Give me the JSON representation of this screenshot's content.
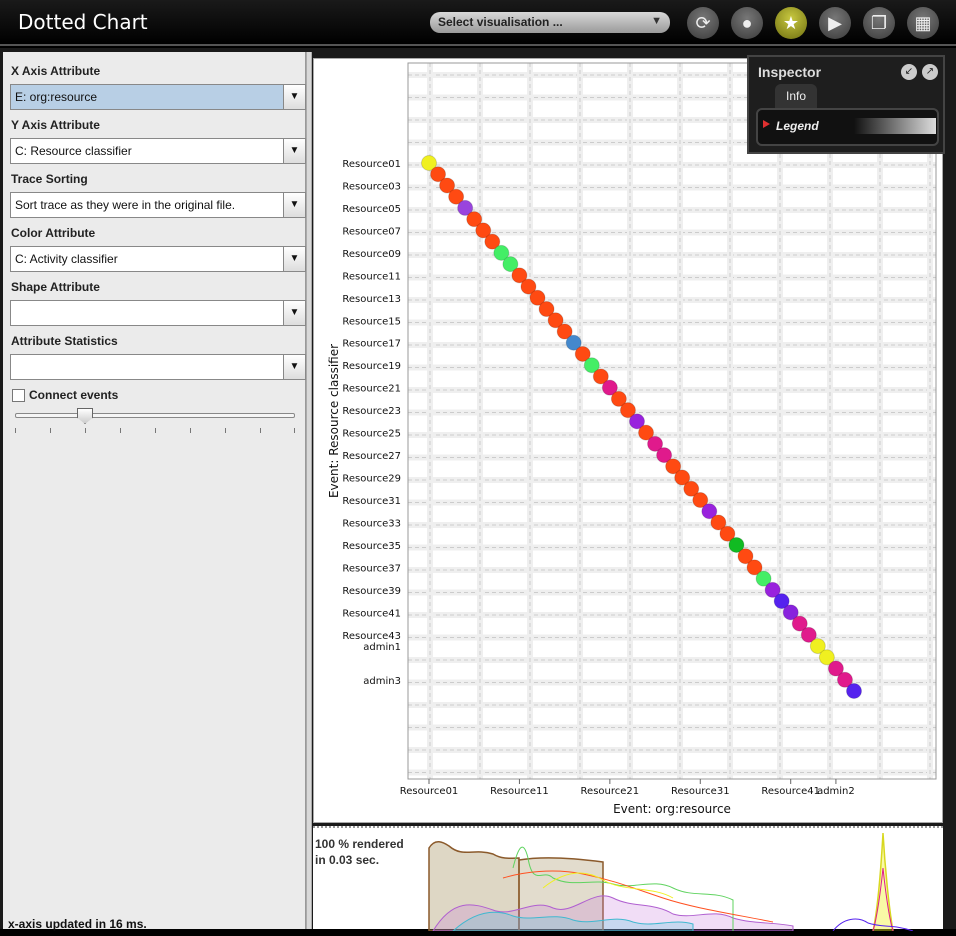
{
  "app": {
    "title": "Dotted Chart"
  },
  "toolbar": {
    "vis_select": "Select visualisation ...",
    "buttons": [
      {
        "name": "refresh-icon"
      },
      {
        "name": "drop-icon"
      },
      {
        "name": "star-icon",
        "active": true
      },
      {
        "name": "play-icon"
      },
      {
        "name": "copy-icon"
      },
      {
        "name": "grid-icon"
      }
    ]
  },
  "settings": {
    "x_axis_label": "X Axis Attribute",
    "x_axis_value": "E: org:resource",
    "y_axis_label": "Y Axis Attribute",
    "y_axis_value": "C: Resource classifier",
    "trace_sorting_label": "Trace Sorting",
    "trace_sorting_value": "Sort trace as they were in the original file.",
    "color_label": "Color Attribute",
    "color_value": "C: Activity classifier",
    "shape_label": "Shape Attribute",
    "shape_value": "",
    "stats_label": "Attribute Statistics",
    "stats_value": "",
    "connect_label": "Connect events",
    "connect_checked": false,
    "status": "x-axis updated in 16 ms."
  },
  "inspector": {
    "title": "Inspector",
    "tab": "Info",
    "legend": "Legend"
  },
  "render_status": {
    "line1": "100 % rendered",
    "line2": "in 0.03 sec."
  },
  "chart_data": {
    "type": "scatter",
    "xlabel": "Event: org:resource",
    "ylabel": "Event: Resource classifier",
    "x_ticks": [
      "Resource01",
      "Resource11",
      "Resource21",
      "Resource31",
      "Resource41",
      "admin2"
    ],
    "y_ticks": [
      "Resource01",
      "Resource03",
      "Resource05",
      "Resource07",
      "Resource09",
      "Resource11",
      "Resource13",
      "Resource15",
      "Resource17",
      "Resource19",
      "Resource21",
      "Resource23",
      "Resource25",
      "Resource27",
      "Resource29",
      "Resource31",
      "Resource33",
      "Resource35",
      "Resource37",
      "Resource39",
      "Resource41",
      "Resource43",
      "admin1",
      "admin3"
    ],
    "points": [
      {
        "x": "Resource01",
        "y": "Resource01",
        "color": "#f0f020"
      },
      {
        "x": "Resource02",
        "y": "Resource02",
        "color": "#ff4a12"
      },
      {
        "x": "Resource03",
        "y": "Resource03",
        "color": "#ff4a12"
      },
      {
        "x": "Resource04",
        "y": "Resource04",
        "color": "#ff4a12"
      },
      {
        "x": "Resource05",
        "y": "Resource05",
        "color": "#9944dd"
      },
      {
        "x": "Resource06",
        "y": "Resource06",
        "color": "#ff4a12"
      },
      {
        "x": "Resource07",
        "y": "Resource07",
        "color": "#ff4a12"
      },
      {
        "x": "Resource08",
        "y": "Resource08",
        "color": "#ff4a12"
      },
      {
        "x": "Resource09",
        "y": "Resource09",
        "color": "#44ee66"
      },
      {
        "x": "Resource10",
        "y": "Resource10",
        "color": "#44ee66"
      },
      {
        "x": "Resource11",
        "y": "Resource11",
        "color": "#ff4a12"
      },
      {
        "x": "Resource12",
        "y": "Resource12",
        "color": "#ff4a12"
      },
      {
        "x": "Resource13",
        "y": "Resource13",
        "color": "#ff4a12"
      },
      {
        "x": "Resource14",
        "y": "Resource14",
        "color": "#ff4a12"
      },
      {
        "x": "Resource15",
        "y": "Resource15",
        "color": "#ff4a12"
      },
      {
        "x": "Resource16",
        "y": "Resource16",
        "color": "#ff4a12"
      },
      {
        "x": "Resource17",
        "y": "Resource17",
        "color": "#4488cc"
      },
      {
        "x": "Resource18",
        "y": "Resource18",
        "color": "#ff4a12"
      },
      {
        "x": "Resource19",
        "y": "Resource19",
        "color": "#44ee66"
      },
      {
        "x": "Resource20",
        "y": "Resource20",
        "color": "#ff4a12"
      },
      {
        "x": "Resource21",
        "y": "Resource21",
        "color": "#e01a8c"
      },
      {
        "x": "Resource22",
        "y": "Resource22",
        "color": "#ff4a12"
      },
      {
        "x": "Resource23",
        "y": "Resource23",
        "color": "#ff4a12"
      },
      {
        "x": "Resource24",
        "y": "Resource24",
        "color": "#9922dd"
      },
      {
        "x": "Resource25",
        "y": "Resource25",
        "color": "#ff4a12"
      },
      {
        "x": "Resource26",
        "y": "Resource26",
        "color": "#e01a8c"
      },
      {
        "x": "Resource27",
        "y": "Resource27",
        "color": "#e01a8c"
      },
      {
        "x": "Resource28",
        "y": "Resource28",
        "color": "#ff4a12"
      },
      {
        "x": "Resource29",
        "y": "Resource29",
        "color": "#ff4a12"
      },
      {
        "x": "Resource30",
        "y": "Resource30",
        "color": "#ff4a12"
      },
      {
        "x": "Resource31",
        "y": "Resource31",
        "color": "#ff4a12"
      },
      {
        "x": "Resource32",
        "y": "Resource32",
        "color": "#9922dd"
      },
      {
        "x": "Resource33",
        "y": "Resource33",
        "color": "#ff4a12"
      },
      {
        "x": "Resource34",
        "y": "Resource34",
        "color": "#ff4a12"
      },
      {
        "x": "Resource35",
        "y": "Resource35",
        "color": "#11bb22"
      },
      {
        "x": "Resource36",
        "y": "Resource36",
        "color": "#ff4a12"
      },
      {
        "x": "Resource37",
        "y": "Resource37",
        "color": "#ff4a12"
      },
      {
        "x": "Resource38",
        "y": "Resource38",
        "color": "#44ee66"
      },
      {
        "x": "Resource39",
        "y": "Resource39",
        "color": "#9922dd"
      },
      {
        "x": "Resource40",
        "y": "Resource40",
        "color": "#5522ee"
      },
      {
        "x": "Resource41",
        "y": "Resource41",
        "color": "#8822dd"
      },
      {
        "x": "Resource42",
        "y": "Resource42",
        "color": "#e01a8c"
      },
      {
        "x": "Resource43",
        "y": "Resource43",
        "color": "#e01a8c"
      },
      {
        "x": "admin1",
        "y": "admin1",
        "color": "#f0f020"
      },
      {
        "x": "admin1b",
        "y": "admin1b",
        "color": "#f0f020"
      },
      {
        "x": "admin2",
        "y": "admin2",
        "color": "#e01a8c"
      },
      {
        "x": "admin3",
        "y": "admin3",
        "color": "#e01a8c"
      },
      {
        "x": "admin3b",
        "y": "admin3b",
        "color": "#5522ee"
      }
    ]
  }
}
